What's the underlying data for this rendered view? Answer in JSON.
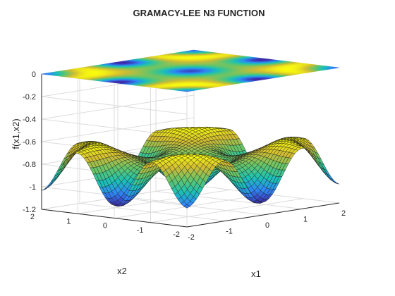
{
  "chart_data": {
    "type": "surface-contour-3d",
    "title": "GRAMACY-LEE N3 FUNCTION",
    "xlabel": "x1",
    "ylabel": "x2",
    "zlabel": "f(x1,x2)",
    "x_range": [
      -2,
      2
    ],
    "y_range": [
      -2,
      2
    ],
    "z_range": [
      -1.2,
      0
    ],
    "x_ticks": [
      "-2",
      "-1",
      "0",
      "1",
      "2"
    ],
    "y_ticks": [
      "-2",
      "-1",
      "0",
      "1",
      "2"
    ],
    "z_ticks": [
      "0",
      "-0.2",
      "-0.4",
      "-0.6",
      "-0.8",
      "-1",
      "-1.2"
    ],
    "function": "f(x1,x2) = -prod(cos(x_i/sqrt(i))) * exp(-sum(x_i^2)/2/... ) approx - displayed as 3D mesh surface with filled contour plane at z = 0",
    "contour_plane_z": 0,
    "grid": true,
    "colormap": [
      "#3e26a8",
      "#2e87f7",
      "#1bc2b4",
      "#64c56a",
      "#d1bb34",
      "#f9fb0e"
    ],
    "mesh_color": "#1a1a1a"
  }
}
